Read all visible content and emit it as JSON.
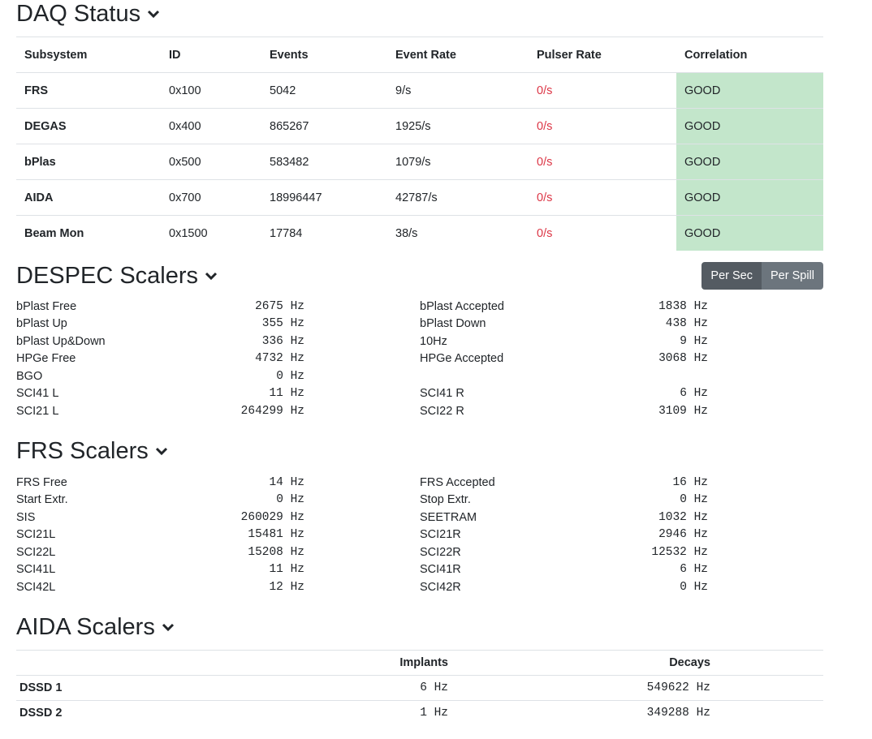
{
  "daq": {
    "title": "DAQ Status",
    "headers": [
      "Subsystem",
      "ID",
      "Events",
      "Event Rate",
      "Pulser Rate",
      "Correlation"
    ],
    "rows": [
      {
        "subsystem": "FRS",
        "id": "0x100",
        "events": "5042",
        "event_rate": "9/s",
        "pulser_rate": "0/s",
        "correlation": "GOOD"
      },
      {
        "subsystem": "DEGAS",
        "id": "0x400",
        "events": "865267",
        "event_rate": "1925/s",
        "pulser_rate": "0/s",
        "correlation": "GOOD"
      },
      {
        "subsystem": "bPlas",
        "id": "0x500",
        "events": "583482",
        "event_rate": "1079/s",
        "pulser_rate": "0/s",
        "correlation": "GOOD"
      },
      {
        "subsystem": "AIDA",
        "id": "0x700",
        "events": "18996447",
        "event_rate": "42787/s",
        "pulser_rate": "0/s",
        "correlation": "GOOD"
      },
      {
        "subsystem": "Beam Mon",
        "id": "0x1500",
        "events": "17784",
        "event_rate": "38/s",
        "pulser_rate": "0/s",
        "correlation": "GOOD"
      }
    ]
  },
  "despec": {
    "title": "DESPEC Scalers",
    "per_sec_label": "Per Sec",
    "per_spill_label": "Per Spill",
    "left": [
      {
        "label": "bPlast Free",
        "value": "2675 Hz"
      },
      {
        "label": "bPlast Up",
        "value": "355 Hz"
      },
      {
        "label": "bPlast Up&Down",
        "value": "336 Hz"
      },
      {
        "label": "HPGe Free",
        "value": "4732 Hz"
      },
      {
        "label": "BGO",
        "value": "0 Hz"
      },
      {
        "label": "SCI41 L",
        "value": "11 Hz"
      },
      {
        "label": "SCI21 L",
        "value": "264299 Hz"
      }
    ],
    "right": [
      {
        "label": "bPlast Accepted",
        "value": "1838 Hz"
      },
      {
        "label": "bPlast Down",
        "value": "438 Hz"
      },
      {
        "label": "10Hz",
        "value": "9 Hz"
      },
      {
        "label": "HPGe Accepted",
        "value": "3068 Hz"
      },
      {
        "label": "",
        "value": ""
      },
      {
        "label": "SCI41 R",
        "value": "6 Hz"
      },
      {
        "label": "SCI22 R",
        "value": "3109 Hz"
      }
    ]
  },
  "frs": {
    "title": "FRS Scalers",
    "left": [
      {
        "label": "FRS Free",
        "value": "14 Hz"
      },
      {
        "label": "Start Extr.",
        "value": "0 Hz"
      },
      {
        "label": "SIS",
        "value": "260029 Hz"
      },
      {
        "label": "SCI21L",
        "value": "15481 Hz"
      },
      {
        "label": "SCI22L",
        "value": "15208 Hz"
      },
      {
        "label": "SCI41L",
        "value": "11 Hz"
      },
      {
        "label": "SCI42L",
        "value": "12 Hz"
      }
    ],
    "right": [
      {
        "label": "FRS Accepted",
        "value": "16 Hz"
      },
      {
        "label": "Stop Extr.",
        "value": "0 Hz"
      },
      {
        "label": "SEETRAM",
        "value": "1032 Hz"
      },
      {
        "label": "SCI21R",
        "value": "2946 Hz"
      },
      {
        "label": "SCI22R",
        "value": "12532 Hz"
      },
      {
        "label": "SCI41R",
        "value": "6 Hz"
      },
      {
        "label": "SCI42R",
        "value": "0 Hz"
      }
    ]
  },
  "aida": {
    "title": "AIDA Scalers",
    "headers": [
      "",
      "Implants",
      "Decays"
    ],
    "rows": [
      {
        "name": "DSSD 1",
        "implants": "6 Hz",
        "decays": "549622 Hz"
      },
      {
        "name": "DSSD 2",
        "implants": "1 Hz",
        "decays": "349288 Hz"
      }
    ]
  },
  "colors": {
    "good": "#c3e6cb",
    "pulser_red": "#dc3545",
    "btn_active": "#545b62",
    "btn_inactive": "#6c757d"
  },
  "icons": {
    "section_toggle": "chevron-down-icon"
  }
}
